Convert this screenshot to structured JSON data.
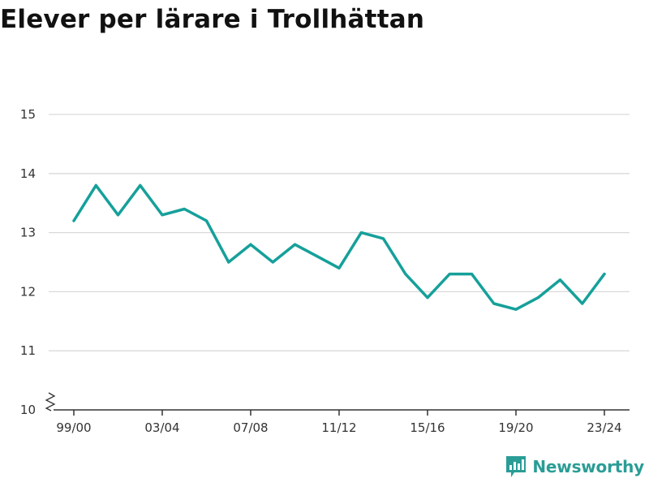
{
  "title": "Elever per lärare i Trollhättan",
  "brand": {
    "name": "Newsworthy",
    "color": "#2a9d96",
    "icon": "bar-chart-speech-bubble-icon"
  },
  "colors": {
    "line": "#16a09a",
    "grid": "#d9d9d9",
    "axis": "#333333",
    "text": "#333333"
  },
  "chart_data": {
    "type": "line",
    "title": "Elever per lärare i Trollhättan",
    "xlabel": "",
    "ylabel": "",
    "ylim": [
      10,
      15
    ],
    "yticks": [
      10,
      11,
      12,
      13,
      14,
      15
    ],
    "y_axis_break": true,
    "grid": true,
    "x": [
      "99/00",
      "00/01",
      "01/02",
      "02/03",
      "03/04",
      "04/05",
      "05/06",
      "06/07",
      "07/08",
      "08/09",
      "09/10",
      "10/11",
      "11/12",
      "12/13",
      "13/14",
      "14/15",
      "15/16",
      "16/17",
      "17/18",
      "18/19",
      "19/20",
      "20/21",
      "21/22",
      "22/23",
      "23/24"
    ],
    "xtick_labels": [
      "99/00",
      "03/04",
      "07/08",
      "11/12",
      "15/16",
      "19/20",
      "23/24"
    ],
    "series": [
      {
        "values": [
          13.2,
          13.8,
          13.3,
          13.8,
          13.3,
          13.4,
          13.2,
          12.5,
          12.8,
          12.5,
          12.8,
          12.6,
          12.4,
          13.0,
          12.9,
          12.3,
          11.9,
          12.3,
          12.3,
          11.8,
          11.7,
          11.9,
          12.2,
          11.8,
          12.3
        ],
        "color": "#16a09a"
      }
    ]
  }
}
